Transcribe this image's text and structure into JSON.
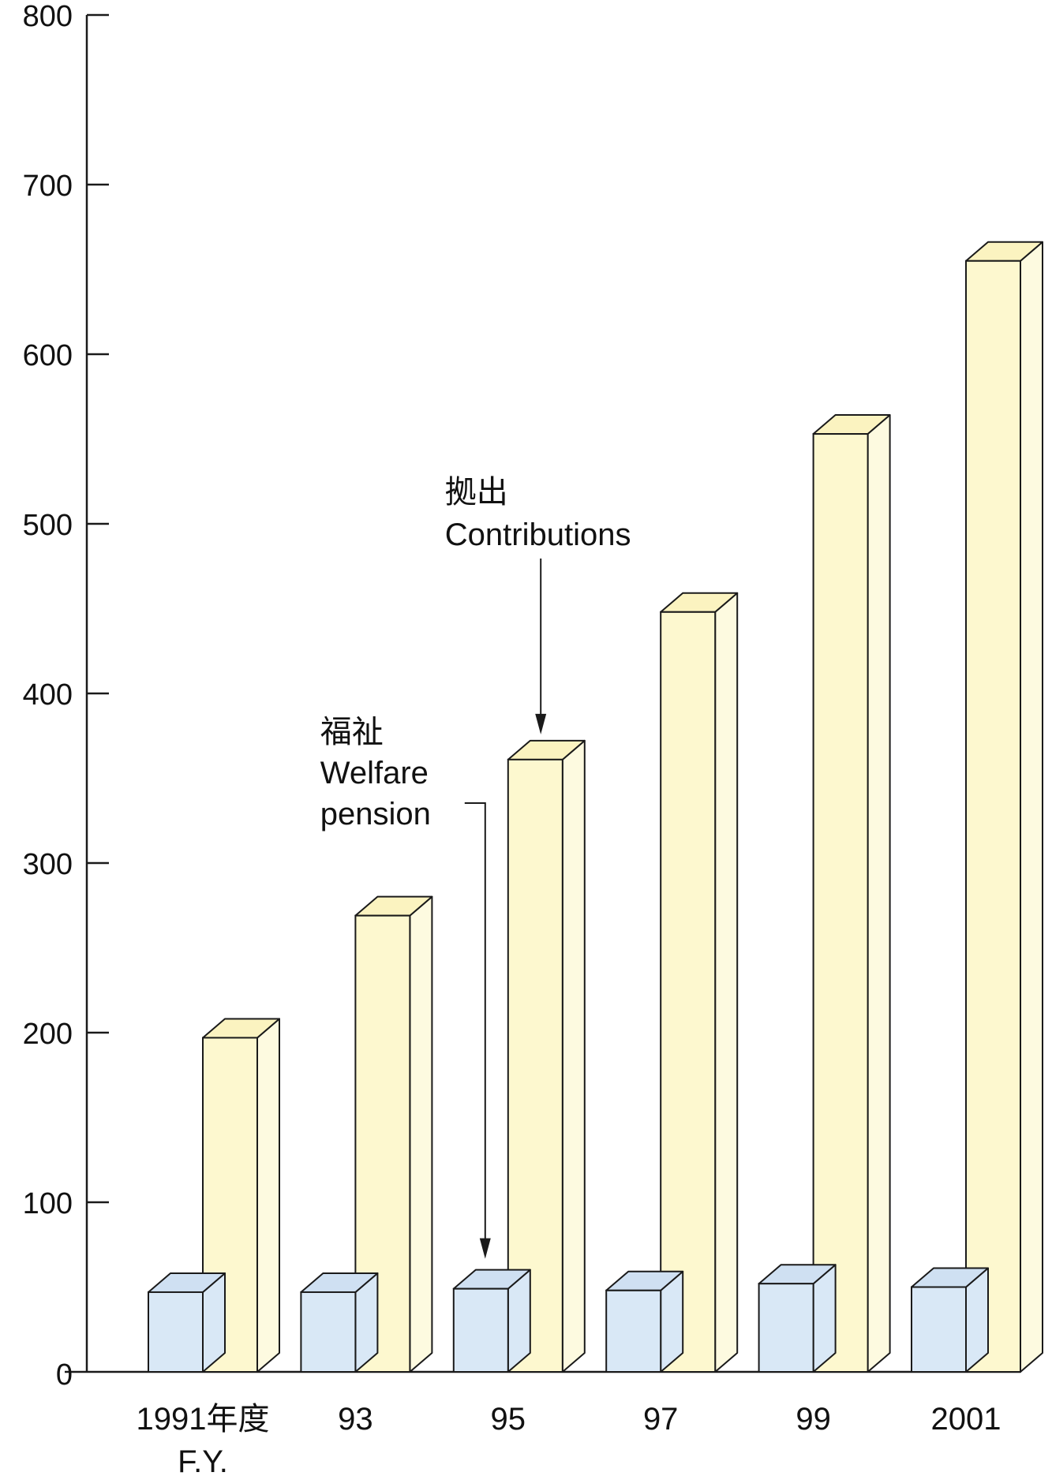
{
  "chart_data": {
    "type": "bar",
    "categories": [
      "1991年度",
      "93",
      "95",
      "97",
      "99",
      "2001"
    ],
    "category_sublabel": "F.Y.",
    "series": [
      {
        "values": [
          47,
          47,
          49,
          48,
          52,
          50
        ]
      },
      {
        "values": [
          197,
          269,
          361,
          448,
          553,
          655
        ]
      }
    ],
    "ylim": [
      0,
      800
    ],
    "yticks": [
      0,
      100,
      200,
      300,
      400,
      500,
      600,
      700,
      800
    ],
    "grid": false,
    "annotations": [
      {
        "lines": [
          "拠出",
          "Contributions"
        ],
        "series_index": 1,
        "category_index": 2
      },
      {
        "lines": [
          "福祉",
          "Welfare",
          "pension"
        ],
        "series_index": 0,
        "category_index": 2
      }
    ],
    "colors": {
      "series_0_front": "#d9e8f6",
      "series_0_top": "#cfe0f2",
      "series_1_front": "#fdf8cf",
      "series_1_top": "#fbf3c0",
      "series_1_side": "#fdfae0",
      "stroke": "#1a1a1a"
    }
  }
}
